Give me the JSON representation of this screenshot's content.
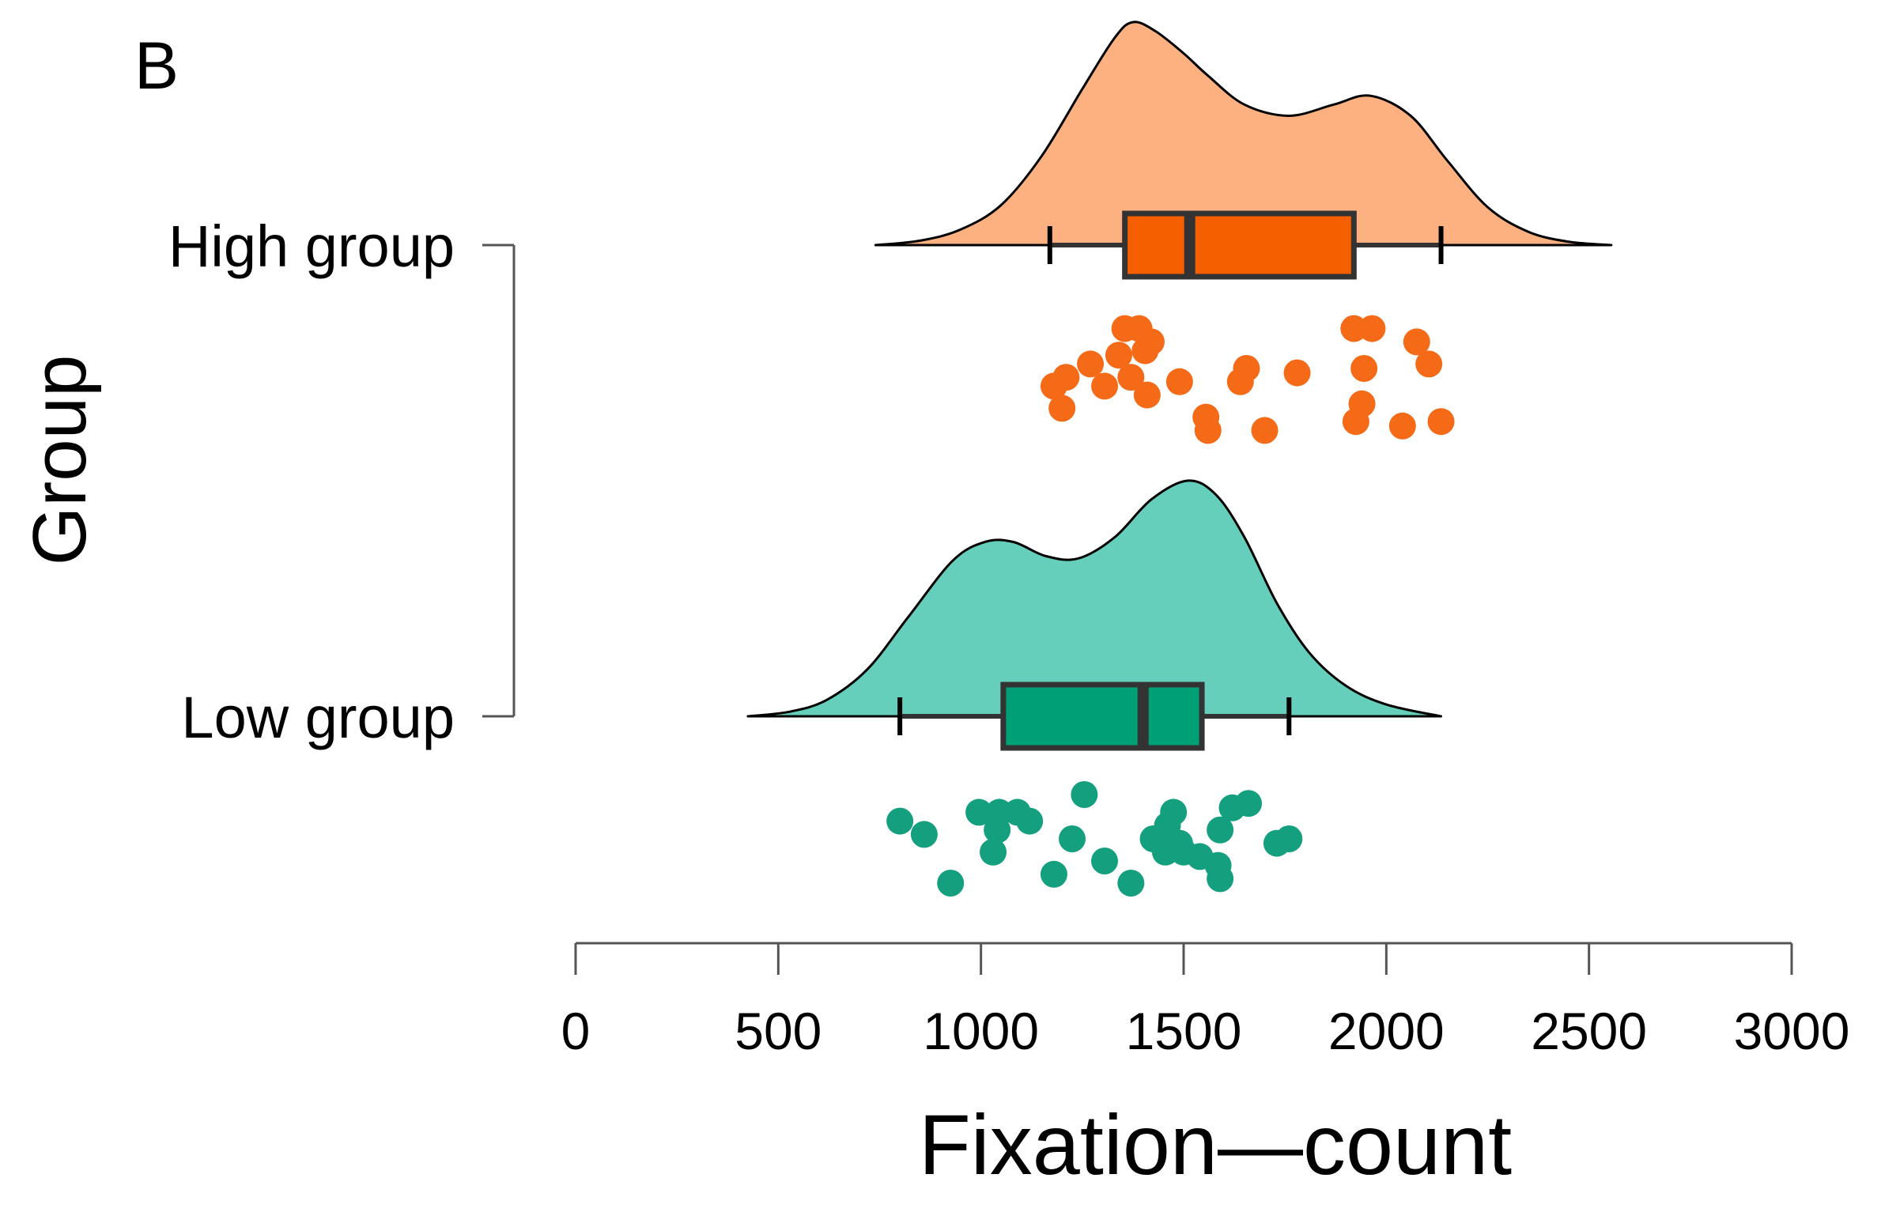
{
  "chart_data": {
    "type": "raincloud",
    "panel_label": "B",
    "title": "",
    "xlabel": "Fixation—count",
    "ylabel": "Group",
    "xlim": [
      0,
      3000
    ],
    "x_ticks": [
      0,
      500,
      1000,
      1500,
      2000,
      2500,
      3000
    ],
    "x_tick_labels": [
      "0",
      "500",
      "1000",
      "1500",
      "2000",
      "2500",
      "3000"
    ],
    "categories": [
      "High group",
      "Low group"
    ],
    "colors": {
      "High group": {
        "density": "#FDB180",
        "box": "#F65F00",
        "points": "#F46A16"
      },
      "Low group": {
        "density": "#66CFBC",
        "box": "#00A077",
        "points": "#14A07E"
      },
      "outline": "#333333"
    },
    "series": [
      {
        "name": "High group",
        "box": {
          "whisker_low": 1170,
          "q1": 1355,
          "median": 1515,
          "q3": 1920,
          "whisker_high": 2135
        },
        "density_range": [
          740,
          2555
        ],
        "density_curve": [
          [
            740,
            0.0
          ],
          [
            850,
            0.02
          ],
          [
            950,
            0.07
          ],
          [
            1050,
            0.18
          ],
          [
            1150,
            0.4
          ],
          [
            1250,
            0.7
          ],
          [
            1330,
            0.93
          ],
          [
            1375,
            1.0
          ],
          [
            1430,
            0.96
          ],
          [
            1500,
            0.86
          ],
          [
            1560,
            0.76
          ],
          [
            1650,
            0.63
          ],
          [
            1760,
            0.58
          ],
          [
            1870,
            0.63
          ],
          [
            1960,
            0.67
          ],
          [
            2060,
            0.58
          ],
          [
            2150,
            0.38
          ],
          [
            2250,
            0.17
          ],
          [
            2350,
            0.06
          ],
          [
            2450,
            0.015
          ],
          [
            2555,
            0.0
          ]
        ],
        "points": [
          {
            "x": 1355,
            "jitter": 0.45
          },
          {
            "x": 1390,
            "jitter": 0.45
          },
          {
            "x": 1920,
            "jitter": 0.45
          },
          {
            "x": 1965,
            "jitter": 0.45
          },
          {
            "x": 1420,
            "jitter": 0.6
          },
          {
            "x": 2075,
            "jitter": 0.6
          },
          {
            "x": 1340,
            "jitter": 0.75
          },
          {
            "x": 1270,
            "jitter": 0.85
          },
          {
            "x": 2105,
            "jitter": 0.85
          },
          {
            "x": 1655,
            "jitter": 0.9
          },
          {
            "x": 1780,
            "jitter": 0.95
          },
          {
            "x": 1945,
            "jitter": 0.9
          },
          {
            "x": 1405,
            "jitter": 0.7
          },
          {
            "x": 1370,
            "jitter": 1.0
          },
          {
            "x": 1210,
            "jitter": 1.0
          },
          {
            "x": 1490,
            "jitter": 1.05
          },
          {
            "x": 1640,
            "jitter": 1.05
          },
          {
            "x": 1180,
            "jitter": 1.1
          },
          {
            "x": 1305,
            "jitter": 1.1
          },
          {
            "x": 1410,
            "jitter": 1.2
          },
          {
            "x": 1940,
            "jitter": 1.3
          },
          {
            "x": 1200,
            "jitter": 1.35
          },
          {
            "x": 1555,
            "jitter": 1.45
          },
          {
            "x": 1925,
            "jitter": 1.5
          },
          {
            "x": 2135,
            "jitter": 1.5
          },
          {
            "x": 2040,
            "jitter": 1.55
          },
          {
            "x": 1560,
            "jitter": 1.6
          },
          {
            "x": 1700,
            "jitter": 1.6
          }
        ]
      },
      {
        "name": "Low group",
        "box": {
          "whisker_low": 800,
          "q1": 1055,
          "median": 1400,
          "q3": 1545,
          "whisker_high": 1760
        },
        "density_range": [
          425,
          2135
        ],
        "density_curve": [
          [
            425,
            0.0
          ],
          [
            530,
            0.02
          ],
          [
            620,
            0.07
          ],
          [
            720,
            0.2
          ],
          [
            820,
            0.42
          ],
          [
            930,
            0.66
          ],
          [
            1010,
            0.74
          ],
          [
            1080,
            0.74
          ],
          [
            1160,
            0.68
          ],
          [
            1240,
            0.67
          ],
          [
            1330,
            0.76
          ],
          [
            1420,
            0.92
          ],
          [
            1510,
            1.0
          ],
          [
            1580,
            0.94
          ],
          [
            1650,
            0.76
          ],
          [
            1730,
            0.48
          ],
          [
            1810,
            0.27
          ],
          [
            1900,
            0.13
          ],
          [
            2000,
            0.05
          ],
          [
            2135,
            0.0
          ]
        ],
        "points": [
          {
            "x": 1255,
            "jitter": 0.4
          },
          {
            "x": 1620,
            "jitter": 0.55
          },
          {
            "x": 1660,
            "jitter": 0.5
          },
          {
            "x": 995,
            "jitter": 0.6
          },
          {
            "x": 1045,
            "jitter": 0.6
          },
          {
            "x": 1090,
            "jitter": 0.6
          },
          {
            "x": 1475,
            "jitter": 0.6
          },
          {
            "x": 800,
            "jitter": 0.7
          },
          {
            "x": 1120,
            "jitter": 0.7
          },
          {
            "x": 1460,
            "jitter": 0.75
          },
          {
            "x": 1590,
            "jitter": 0.8
          },
          {
            "x": 860,
            "jitter": 0.85
          },
          {
            "x": 1040,
            "jitter": 0.8
          },
          {
            "x": 1225,
            "jitter": 0.9
          },
          {
            "x": 1425,
            "jitter": 0.9
          },
          {
            "x": 1490,
            "jitter": 0.95
          },
          {
            "x": 1730,
            "jitter": 0.95
          },
          {
            "x": 1760,
            "jitter": 0.9
          },
          {
            "x": 1030,
            "jitter": 1.05
          },
          {
            "x": 1455,
            "jitter": 1.05
          },
          {
            "x": 1500,
            "jitter": 1.05
          },
          {
            "x": 1305,
            "jitter": 1.15
          },
          {
            "x": 1540,
            "jitter": 1.1
          },
          {
            "x": 1585,
            "jitter": 1.2
          },
          {
            "x": 1180,
            "jitter": 1.3
          },
          {
            "x": 925,
            "jitter": 1.4
          },
          {
            "x": 1370,
            "jitter": 1.4
          },
          {
            "x": 1590,
            "jitter": 1.35
          }
        ]
      }
    ]
  }
}
